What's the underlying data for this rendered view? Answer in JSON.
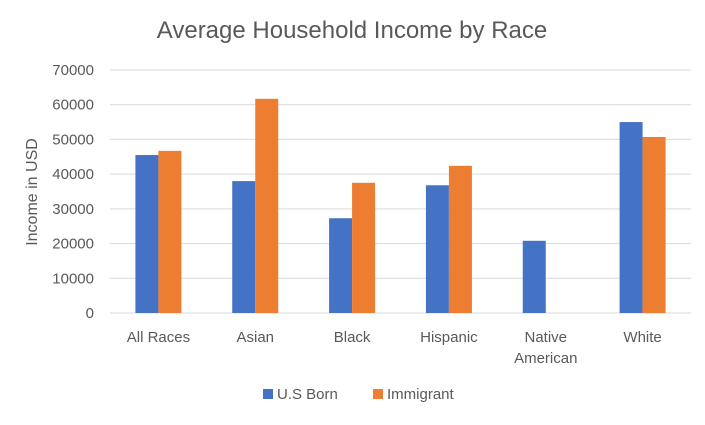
{
  "chart_data": {
    "type": "bar",
    "title": "Average Household Income by Race",
    "xlabel": "",
    "ylabel": "Income in USD",
    "ylim": [
      0,
      70000
    ],
    "yticks": [
      0,
      10000,
      20000,
      30000,
      40000,
      50000,
      60000,
      70000
    ],
    "categories": [
      "All Races",
      "Asian",
      "Black",
      "Hispanic",
      "Native American",
      "White"
    ],
    "series": [
      {
        "name": "U.S Born",
        "color": "#4472c4",
        "values": [
          45500,
          38000,
          27300,
          36800,
          20800,
          55000
        ]
      },
      {
        "name": "Immigrant",
        "color": "#ed7d31",
        "values": [
          46700,
          61700,
          37500,
          42400,
          null,
          50700
        ]
      }
    ],
    "grid": true,
    "legend": "bottom"
  }
}
